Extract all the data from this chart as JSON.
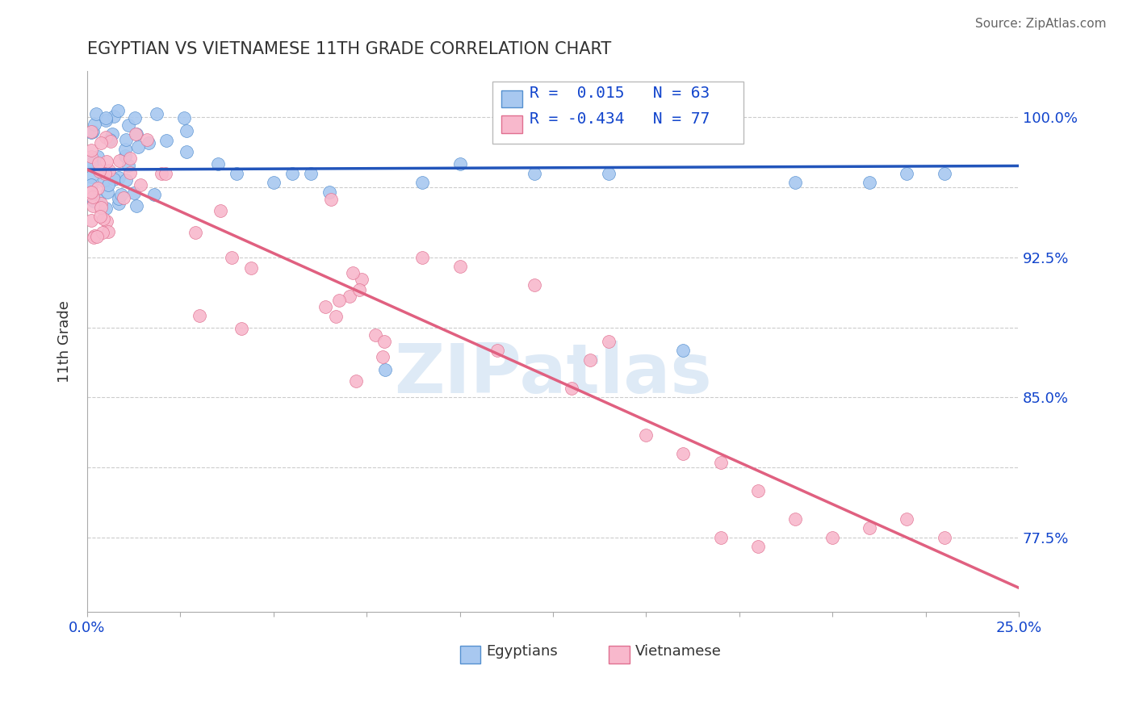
{
  "title": "EGYPTIAN VS VIETNAMESE 11TH GRADE CORRELATION CHART",
  "source": "Source: ZipAtlas.com",
  "ylabel": "11th Grade",
  "xlim": [
    0.0,
    0.25
  ],
  "ylim": [
    0.735,
    1.025
  ],
  "xticks": [
    0.0,
    0.025,
    0.05,
    0.075,
    0.1,
    0.125,
    0.15,
    0.175,
    0.2,
    0.225,
    0.25
  ],
  "yticks": [
    0.775,
    0.8125,
    0.85,
    0.8875,
    0.925,
    0.9625,
    1.0
  ],
  "ytick_labels": [
    "77.5%",
    "",
    "85.0%",
    "",
    "92.5%",
    "",
    "100.0%"
  ],
  "r_egyptian": 0.015,
  "n_egyptian": 63,
  "r_vietnamese": -0.434,
  "n_vietnamese": 77,
  "egyptian_color": "#A8C8F0",
  "egyptian_edge": "#5590D0",
  "vietnamese_color": "#F8B8CC",
  "vietnamese_edge": "#E07090",
  "egyptian_line_color": "#2255BB",
  "vietnamese_line_color": "#E06080",
  "legend_r_color": "#1144CC",
  "background_color": "#FFFFFF",
  "grid_color": "#CCCCCC",
  "watermark_color": "#C8DCF0",
  "eg_line_y0": 0.972,
  "eg_line_y1": 0.974,
  "vi_line_y0": 0.972,
  "vi_line_y1": 0.748
}
